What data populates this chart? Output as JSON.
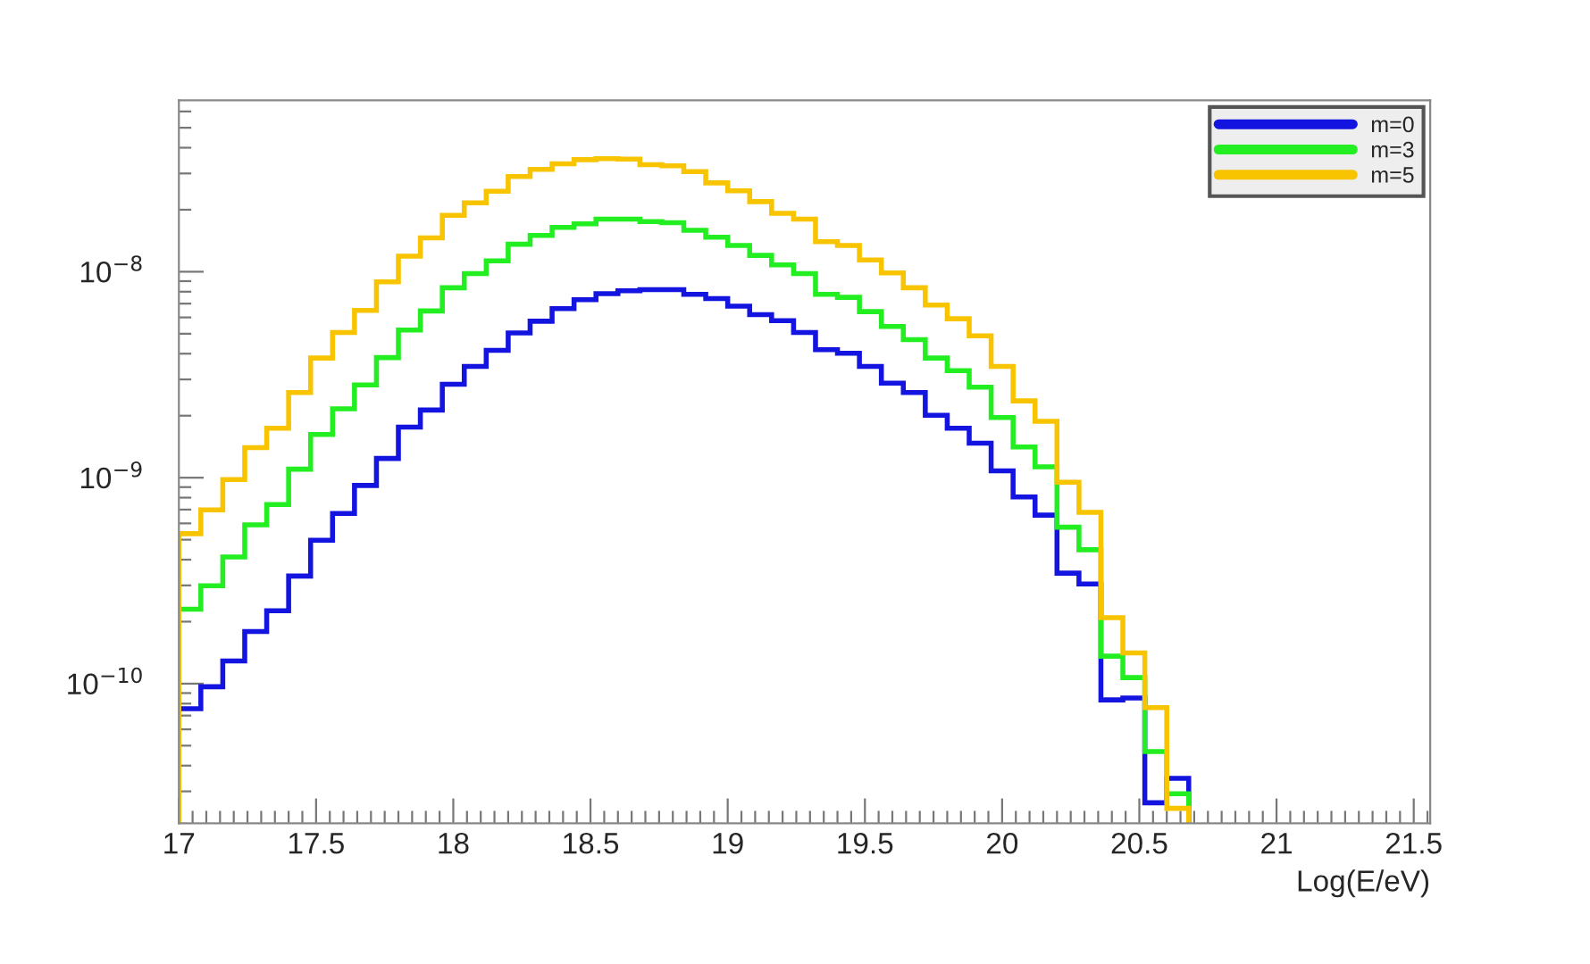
{
  "chart_data": {
    "type": "histogram",
    "xlabel": "Log(E/eV)",
    "bins": [
      17.0,
      17.08,
      17.16,
      17.24,
      17.32,
      17.4,
      17.48,
      17.56,
      17.64,
      17.72,
      17.8,
      17.88,
      17.96,
      18.04,
      18.12,
      18.2,
      18.28,
      18.36,
      18.44,
      18.52,
      18.6,
      18.68,
      18.76,
      18.84,
      18.92,
      19.0,
      19.08,
      19.16,
      19.24,
      19.32,
      19.4,
      19.48,
      19.56,
      19.64,
      19.72,
      19.8,
      19.88,
      19.96,
      20.04,
      20.12,
      20.2,
      20.28,
      20.36,
      20.44,
      20.52,
      20.6,
      20.68
    ],
    "series": [
      {
        "name": "m=0",
        "color": "#1414e0",
        "values": [
          7.55e-11,
          9.66e-11,
          1.29e-10,
          1.79e-10,
          2.26e-10,
          3.33e-10,
          4.97e-10,
          6.7e-10,
          9.17e-10,
          1.24e-09,
          1.76e-09,
          2.13e-09,
          2.84e-09,
          3.47e-09,
          4.15e-09,
          5.04e-09,
          5.75e-09,
          6.62e-09,
          7.31e-09,
          7.82e-09,
          8.08e-09,
          8.19e-09,
          8.19e-09,
          7.76e-09,
          7.41e-09,
          6.8e-09,
          6.19e-09,
          5.79e-09,
          5.07e-09,
          4.18e-09,
          4.02e-09,
          3.47e-09,
          2.88e-09,
          2.59e-09,
          2.01e-09,
          1.74e-09,
          1.47e-09,
          1.08e-09,
          8.07e-10,
          6.58e-10,
          3.44e-10,
          3.05e-10,
          8.34e-11,
          8.51e-11,
          2.64e-11,
          3.47e-11
        ]
      },
      {
        "name": "m=3",
        "color": "#22ee22",
        "values": [
          2.3e-10,
          2.99e-10,
          4.12e-10,
          5.9e-10,
          7.41e-10,
          1.1e-09,
          1.62e-09,
          2.16e-09,
          2.82e-09,
          3.83e-09,
          5.21e-09,
          6.45e-09,
          8.36e-09,
          9.8e-09,
          1.13e-08,
          1.36e-08,
          1.5e-08,
          1.64e-08,
          1.71e-08,
          1.8e-08,
          1.8e-08,
          1.75e-08,
          1.73e-08,
          1.59e-08,
          1.47e-08,
          1.34e-08,
          1.2e-08,
          1.08e-08,
          9.8e-09,
          7.76e-09,
          7.51e-09,
          6.4e-09,
          5.42e-09,
          4.68e-09,
          3.81e-09,
          3.31e-09,
          2.75e-09,
          1.96e-09,
          1.41e-09,
          1.13e-09,
          5.75e-10,
          4.47e-10,
          1.36e-10,
          1.07e-10,
          4.68e-11,
          2.92e-11
        ]
      },
      {
        "name": "m=5",
        "color": "#f8c400",
        "values": [
          5.35e-10,
          6.98e-10,
          9.8e-10,
          1.4e-09,
          1.74e-09,
          2.59e-09,
          3.81e-09,
          5.07e-09,
          6.49e-09,
          8.93e-09,
          1.19e-08,
          1.46e-08,
          1.88e-08,
          2.16e-08,
          2.46e-08,
          2.9e-08,
          3.14e-08,
          3.34e-08,
          3.5e-08,
          3.54e-08,
          3.52e-08,
          3.31e-08,
          3.27e-08,
          3.06e-08,
          2.7e-08,
          2.47e-08,
          2.19e-08,
          1.92e-08,
          1.8e-08,
          1.4e-08,
          1.34e-08,
          1.14e-08,
          9.87e-09,
          8.36e-09,
          6.89e-09,
          5.91e-09,
          4.88e-09,
          3.47e-09,
          2.36e-09,
          1.88e-09,
          9.5e-10,
          6.79e-10,
          2.09e-10,
          1.41e-10,
          7.65e-11,
          2.48e-11
        ]
      }
    ],
    "log": "y",
    "xlim": [
      17.0,
      21.56
    ],
    "xticks": [
      17,
      17.5,
      18,
      18.5,
      19,
      19.5,
      20,
      20.5,
      21,
      21.5
    ],
    "ylim": [
      2.1e-11,
      6.8e-08
    ],
    "yticks": [
      {
        "value": 1e-10,
        "label": "10$^{−10}$"
      },
      {
        "value": 1e-09,
        "label": "10$^{−9}$"
      },
      {
        "value": 1e-08,
        "label": "10$^{−8}$"
      }
    ],
    "grid": false,
    "legend": "top right"
  }
}
